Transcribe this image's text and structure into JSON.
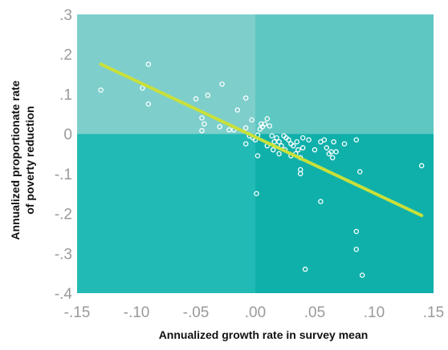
{
  "chart_data": {
    "type": "scatter",
    "title": "",
    "xlabel": "Annualized growth rate in survey mean",
    "ylabel_lines": [
      "Annualized proportionate rate",
      "of poverty reduction"
    ],
    "xlim": [
      -0.15,
      0.15
    ],
    "ylim": [
      -0.4,
      0.3
    ],
    "x_ticks": [
      -0.15,
      -0.1,
      -0.05,
      0.0,
      0.05,
      0.1,
      0.15
    ],
    "x_tick_labels": [
      "-.15",
      "-.10",
      "-.05",
      ".00",
      ".05",
      ".10",
      ".15"
    ],
    "y_ticks": [
      0.3,
      0.2,
      0.1,
      0.0,
      -0.1,
      -0.2,
      -0.3,
      -0.4
    ],
    "y_tick_labels": [
      ".3",
      ".2",
      ".1",
      "0",
      "-.1",
      "-.2",
      "-.3",
      "-.4"
    ],
    "grid": false,
    "legend": "none",
    "colors": {
      "quadrant_top_left": "#7ecfcb",
      "quadrant_top_right": "#5fc7c2",
      "quadrant_bottom_left": "#22bab4",
      "quadrant_bottom_right": "#0fb0aa",
      "points": "#ffffff",
      "fit_line": "#c9e03a"
    },
    "fit_line": {
      "x": [
        -0.13,
        0.14
      ],
      "y": [
        0.175,
        -0.205
      ]
    },
    "series": [
      {
        "points": [
          [
            -0.13,
            0.11
          ],
          [
            -0.09,
            0.175
          ],
          [
            -0.095,
            0.115
          ],
          [
            -0.09,
            0.075
          ],
          [
            -0.05,
            0.088
          ],
          [
            -0.04,
            0.097
          ],
          [
            -0.045,
            0.04
          ],
          [
            -0.043,
            0.025
          ],
          [
            -0.045,
            0.008
          ],
          [
            -0.028,
            0.125
          ],
          [
            -0.015,
            0.06
          ],
          [
            -0.008,
            0.09
          ],
          [
            -0.03,
            0.018
          ],
          [
            -0.022,
            0.01
          ],
          [
            -0.018,
            0.01
          ],
          [
            -0.008,
            0.015
          ],
          [
            -0.003,
            0.035
          ],
          [
            0.005,
            0.025
          ],
          [
            -0.005,
            -0.005
          ],
          [
            -0.002,
            -0.01
          ],
          [
            -0.008,
            -0.025
          ],
          [
            0.0,
            -0.015
          ],
          [
            0.002,
            -0.003
          ],
          [
            0.004,
            0.012
          ],
          [
            0.006,
            0.018
          ],
          [
            0.008,
            0.025
          ],
          [
            0.01,
            0.038
          ],
          [
            0.012,
            0.02
          ],
          [
            0.014,
            -0.005
          ],
          [
            0.016,
            -0.02
          ],
          [
            0.018,
            -0.01
          ],
          [
            0.02,
            -0.02
          ],
          [
            0.022,
            -0.03
          ],
          [
            0.024,
            -0.005
          ],
          [
            0.026,
            -0.01
          ],
          [
            0.028,
            -0.015
          ],
          [
            0.03,
            -0.025
          ],
          [
            0.032,
            -0.03
          ],
          [
            0.034,
            -0.05
          ],
          [
            0.036,
            -0.04
          ],
          [
            0.038,
            -0.06
          ],
          [
            0.04,
            -0.01
          ],
          [
            0.01,
            -0.03
          ],
          [
            0.015,
            -0.04
          ],
          [
            0.02,
            -0.05
          ],
          [
            0.025,
            -0.04
          ],
          [
            0.03,
            -0.055
          ],
          [
            0.035,
            -0.02
          ],
          [
            0.04,
            -0.035
          ],
          [
            0.045,
            -0.015
          ],
          [
            0.05,
            -0.04
          ],
          [
            0.055,
            -0.02
          ],
          [
            0.058,
            -0.015
          ],
          [
            0.06,
            -0.035
          ],
          [
            0.062,
            -0.05
          ],
          [
            0.064,
            -0.045
          ],
          [
            0.065,
            -0.06
          ],
          [
            0.066,
            -0.02
          ],
          [
            0.068,
            -0.045
          ],
          [
            0.075,
            -0.025
          ],
          [
            0.085,
            -0.015
          ],
          [
            0.038,
            -0.09
          ],
          [
            0.038,
            -0.1
          ],
          [
            0.002,
            -0.055
          ],
          [
            0.001,
            -0.15
          ],
          [
            0.055,
            -0.17
          ],
          [
            0.088,
            -0.095
          ],
          [
            0.085,
            -0.245
          ],
          [
            0.085,
            -0.29
          ],
          [
            0.09,
            -0.355
          ],
          [
            0.042,
            -0.34
          ],
          [
            0.14,
            -0.08
          ]
        ]
      }
    ]
  }
}
